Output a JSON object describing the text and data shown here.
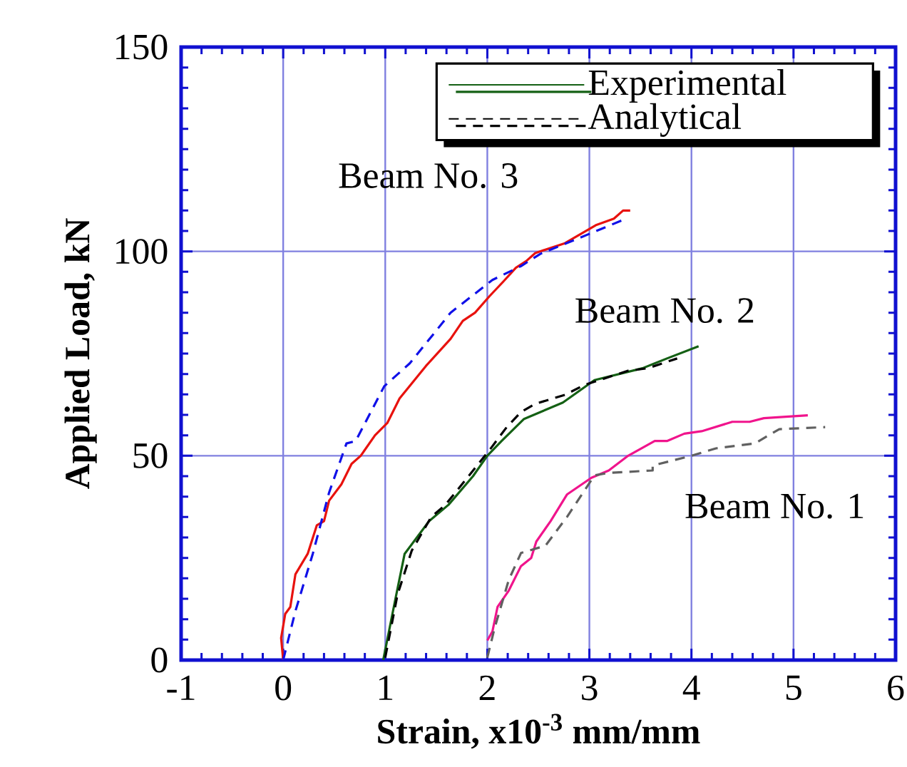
{
  "chart_data": {
    "type": "line",
    "xlabel": "Strain, x10$^{-3}$ mm/mm",
    "ylabel": "Applied Load, kN",
    "xlim": [
      -1,
      6
    ],
    "ylim": [
      0,
      150
    ],
    "xticks": [
      -1,
      0,
      1,
      2,
      3,
      4,
      5,
      6
    ],
    "yticks": [
      0,
      50,
      100,
      150
    ],
    "grid": true,
    "legend": "top right",
    "series": [
      {
        "color": "#146014",
        "line_style": "solid",
        "name": "Experimental",
        "x": [
          0.98,
          1.1,
          1.19,
          1.43,
          1.62,
          1.86,
          2.0,
          2.14,
          2.36,
          2.74,
          3.05,
          3.52,
          3.76,
          4.07
        ],
        "values": [
          0,
          15,
          26,
          34,
          38,
          45,
          50,
          53.6,
          59,
          63,
          68.5,
          71.4,
          73.8,
          76.8
        ]
      },
      {
        "color": "#000000",
        "line_style": "dashed",
        "name": "Analytical",
        "x": [
          1.0,
          1.12,
          1.26,
          1.45,
          1.59,
          1.9,
          2.04,
          2.19,
          2.33,
          2.47,
          2.76,
          2.95,
          3.38,
          3.57,
          3.86
        ],
        "values": [
          0.6,
          16,
          26.8,
          35,
          38,
          47.6,
          52,
          57,
          60.7,
          62.7,
          64.9,
          67.3,
          70.8,
          71.4,
          73.8
        ]
      },
      {
        "color": "#e8120e",
        "line_style": "solid",
        "x": [
          0,
          -0.02,
          0.02,
          0.07,
          0.12,
          0.24,
          0.33,
          0.4,
          0.45,
          0.57,
          0.67,
          0.76,
          0.9,
          1.02,
          1.14,
          1.4,
          1.64,
          1.76,
          1.88,
          2.02,
          2.16,
          2.28,
          2.38,
          2.47,
          2.76,
          3.07,
          3.24,
          3.33,
          3.4
        ],
        "values": [
          0,
          5.4,
          11.3,
          13,
          21,
          26,
          33,
          34,
          39,
          43,
          48,
          50,
          55,
          58,
          64,
          72,
          78.6,
          83,
          85,
          89,
          92.7,
          96,
          97.6,
          99.6,
          102,
          106.5,
          108,
          110,
          110
        ]
      },
      {
        "color": "#1010e8",
        "line_style": "dashed",
        "x": [
          0,
          0.12,
          0.29,
          0.45,
          0.62,
          0.71,
          0.99,
          1.24,
          1.48,
          1.64,
          2.05,
          2.33,
          2.52,
          3.05,
          3.33
        ],
        "values": [
          0,
          12,
          26,
          41,
          53,
          53.6,
          67,
          72.6,
          80,
          85,
          93,
          96.4,
          99.4,
          104.8,
          107.7
        ]
      },
      {
        "color": "#f0148c",
        "line_style": "solid",
        "x": [
          2.0,
          2.05,
          2.1,
          2.21,
          2.33,
          2.43,
          2.48,
          2.62,
          2.78,
          3.02,
          3.19,
          3.38,
          3.64,
          3.76,
          3.93,
          4.1,
          4.4,
          4.57,
          4.71,
          5.14
        ],
        "values": [
          4.8,
          7,
          13,
          17,
          23,
          25,
          29,
          34,
          40.5,
          44.6,
          46.4,
          50,
          53.6,
          53.6,
          55.4,
          56,
          58.3,
          58.3,
          59.2,
          59.9
        ]
      },
      {
        "color": "#606060",
        "line_style": "dashed",
        "x": [
          2.0,
          2.07,
          2.21,
          2.33,
          2.57,
          2.78,
          3.05,
          3.19,
          3.62,
          3.62,
          4.0,
          4.24,
          4.62,
          4.86,
          5.31
        ],
        "values": [
          0.6,
          7.7,
          19.6,
          26.2,
          28,
          35,
          45.2,
          45.8,
          46.4,
          47.6,
          50,
          51.8,
          53,
          56.5,
          57
        ]
      }
    ],
    "annotations": [
      "Beam No. 3",
      "Beam No. 2",
      "Beam No. 1"
    ]
  }
}
